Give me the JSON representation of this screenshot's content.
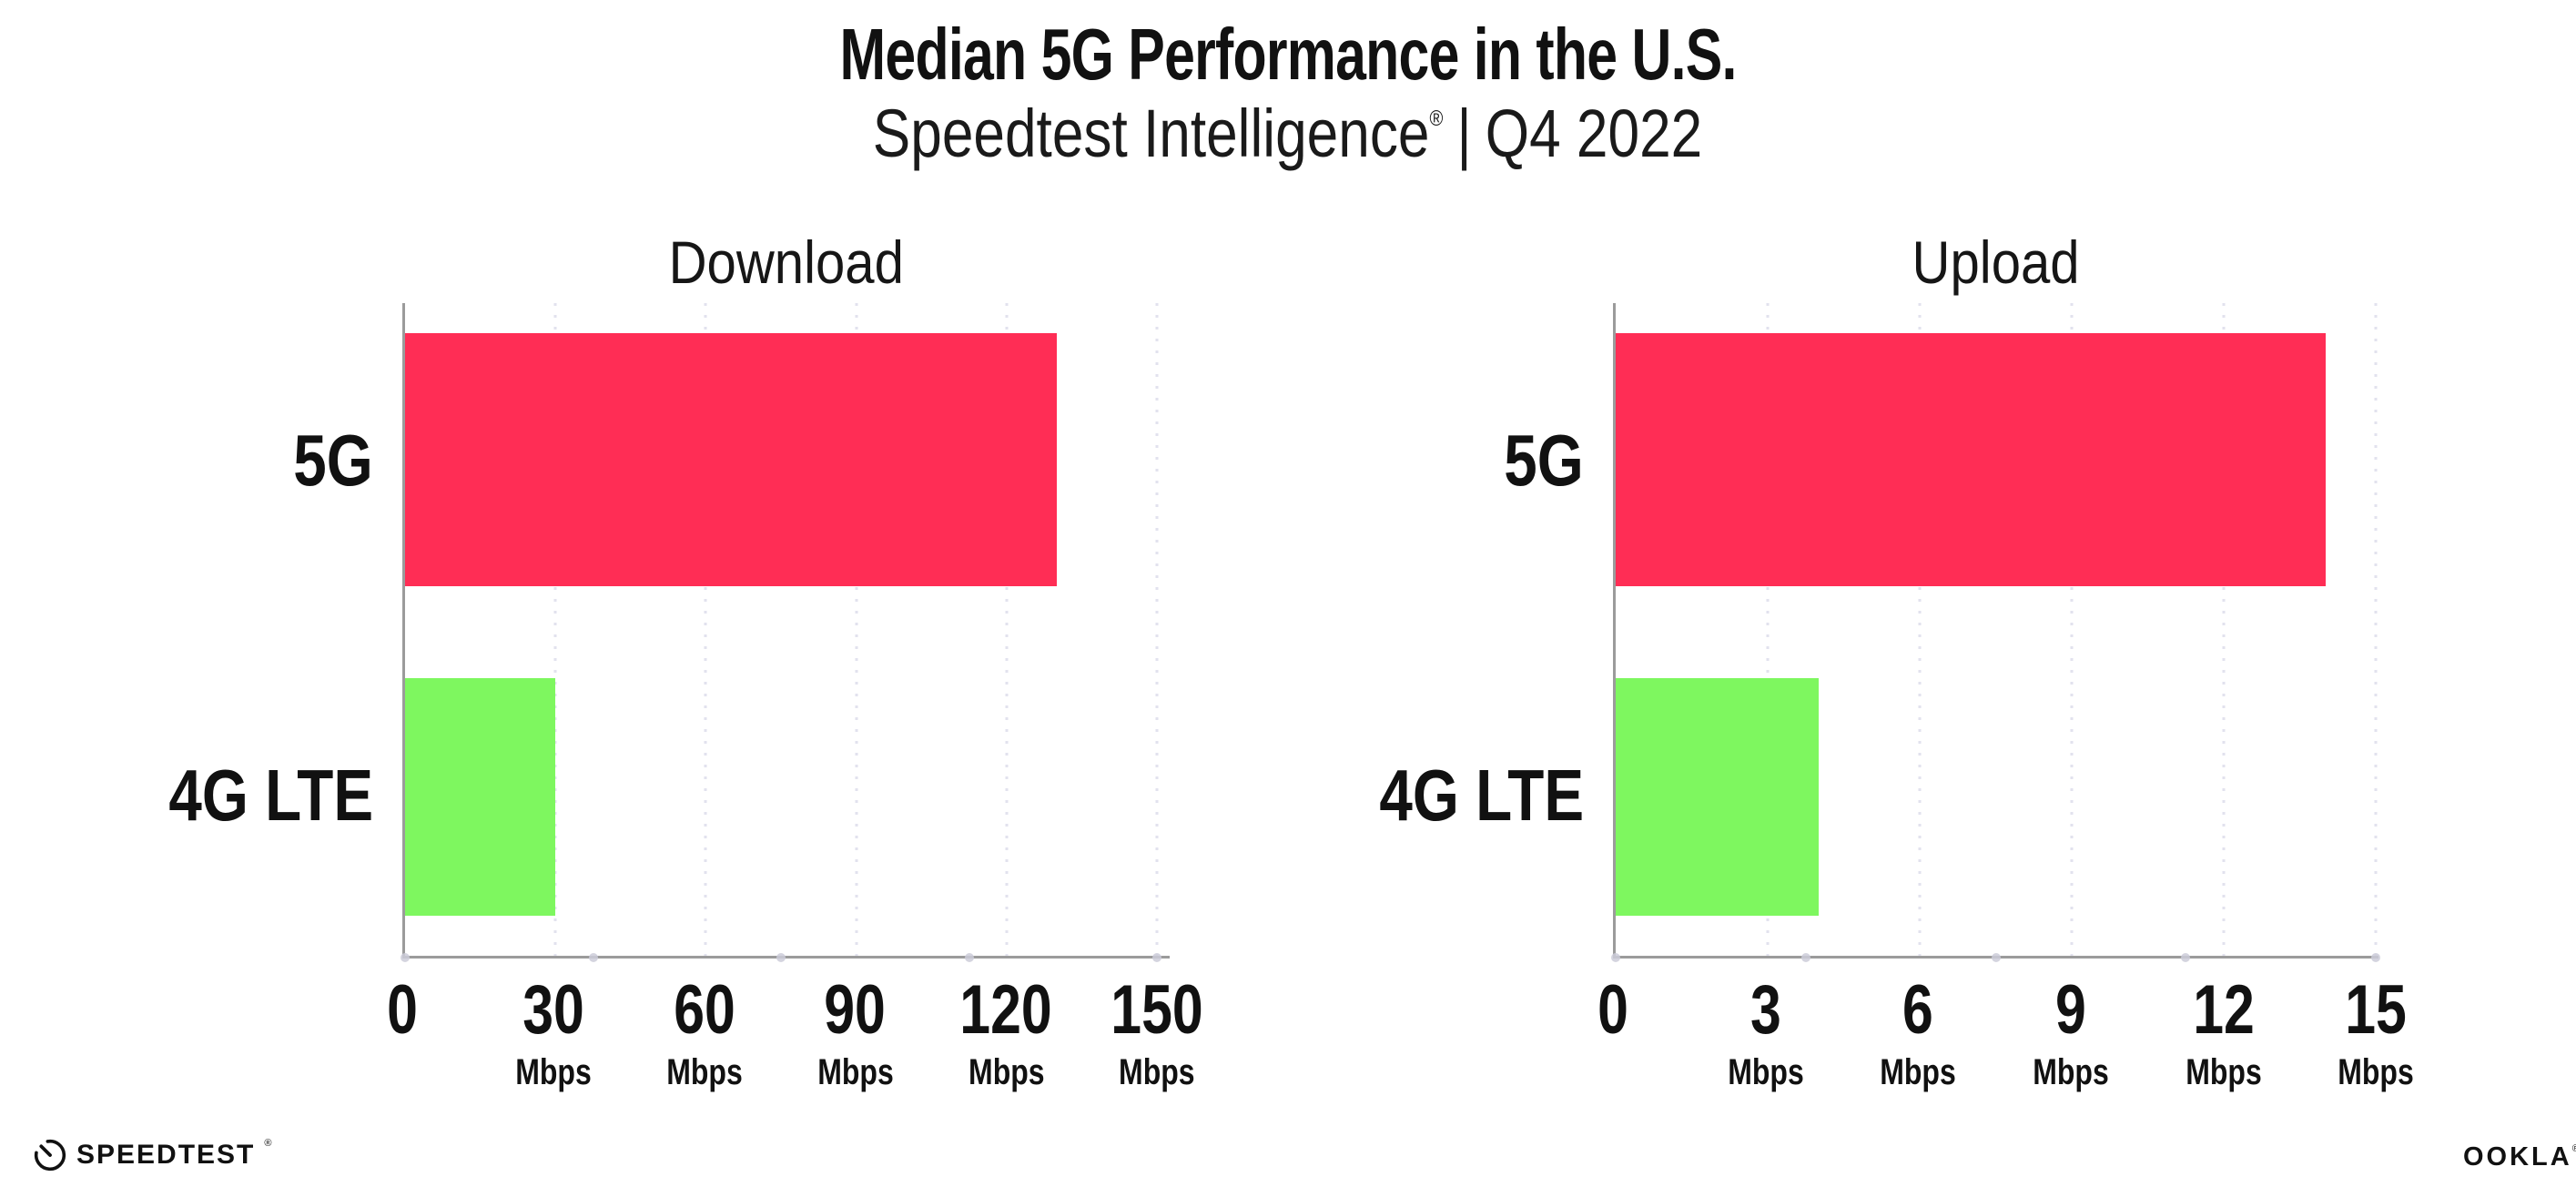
{
  "header": {
    "title": "Median 5G Performance in the U.S.",
    "subtitle_brand": "Speedtest Intelligence",
    "subtitle_mark": "®",
    "subtitle_separator": "|",
    "subtitle_period": "Q4 2022"
  },
  "footer": {
    "speedtest_label": "SPEEDTEST",
    "speedtest_mark": "®",
    "ookla_label": "OOKLA",
    "ookla_mark": "®"
  },
  "colors": {
    "bar_5g": "#FF2D55",
    "bar_4g_lte": "#7EF75F",
    "axis": "#9B9B9B",
    "gridline_dots": "#E2E2EE",
    "axis_tick_dots": "#CDCDD9",
    "text": "#111111",
    "background": "#FFFFFF"
  },
  "chart_data": [
    {
      "type": "bar",
      "orientation": "horizontal",
      "title": "Download",
      "categories": [
        "5G",
        "4G LTE"
      ],
      "values": [
        130,
        30
      ],
      "unit": "Mbps",
      "x_ticks": [
        0,
        30,
        60,
        90,
        120,
        150
      ],
      "xlim": [
        0,
        152.5
      ],
      "grid": "dotted-vertical",
      "legend": "none",
      "bar_colors": [
        "#FF2D55",
        "#7EF75F"
      ]
    },
    {
      "type": "bar",
      "orientation": "horizontal",
      "title": "Upload",
      "categories": [
        "5G",
        "4G LTE"
      ],
      "values": [
        14,
        4
      ],
      "unit": "Mbps",
      "x_ticks": [
        0,
        3,
        6,
        9,
        12,
        15
      ],
      "xlim": [
        0,
        15.05
      ],
      "grid": "dotted-vertical",
      "legend": "none",
      "bar_colors": [
        "#FF2D55",
        "#7EF75F"
      ]
    }
  ]
}
